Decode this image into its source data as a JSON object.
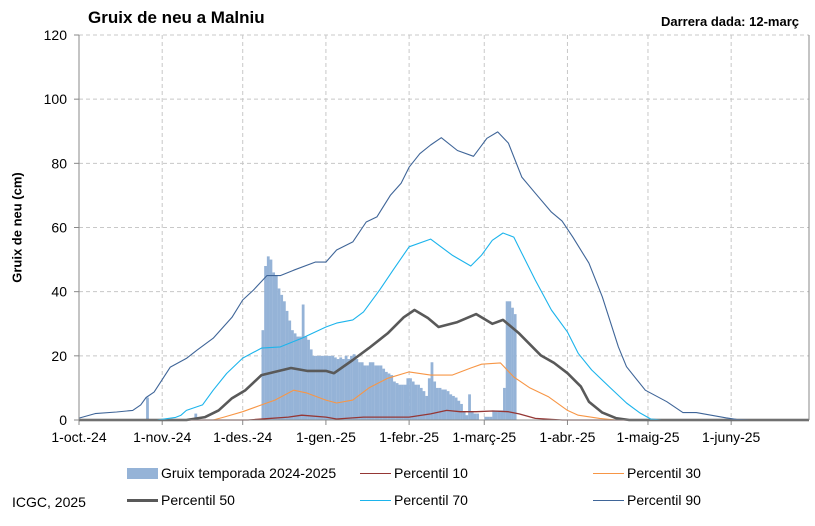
{
  "chart_data": {
    "type": "bar+line",
    "title": "Gruix de neu a Malniu",
    "subtitle": "Darrera dada: 12-març",
    "ylabel": "Gruix de neu (cm)",
    "xlabel": "",
    "credit": "ICGC, 2025",
    "xlim": [
      "2024-10-01",
      "2025-06-30"
    ],
    "ylim": [
      0,
      120
    ],
    "yticks": [
      0,
      20,
      40,
      60,
      80,
      100,
      120
    ],
    "xticks": [
      {
        "date": "2024-10-01",
        "label": "1-oct.-24"
      },
      {
        "date": "2024-11-01",
        "label": "1-nov.-24"
      },
      {
        "date": "2024-12-01",
        "label": "1-des.-24"
      },
      {
        "date": "2025-01-01",
        "label": "1-gen.-25"
      },
      {
        "date": "2025-02-01",
        "label": "1-febr.-25"
      },
      {
        "date": "2025-03-01",
        "label": "1-març-25"
      },
      {
        "date": "2025-04-01",
        "label": "1-abr.-25"
      },
      {
        "date": "2025-05-01",
        "label": "1-maig-25"
      },
      {
        "date": "2025-06-01",
        "label": "1-juny-25"
      }
    ],
    "grid": true,
    "legend_position": "bottom",
    "bars": {
      "name": "Gruix temporada 2024-2025",
      "color": "#95B3D7",
      "points": [
        [
          "2024-10-26",
          7
        ],
        [
          "2024-11-13",
          2
        ],
        [
          "2024-12-08",
          28
        ],
        [
          "2024-12-09",
          48
        ],
        [
          "2024-12-10",
          51
        ],
        [
          "2024-12-11",
          50
        ],
        [
          "2024-12-12",
          46
        ],
        [
          "2024-12-13",
          45
        ],
        [
          "2024-12-14",
          41
        ],
        [
          "2024-12-15",
          39
        ],
        [
          "2024-12-16",
          37
        ],
        [
          "2024-12-17",
          34
        ],
        [
          "2024-12-18",
          31
        ],
        [
          "2024-12-19",
          28
        ],
        [
          "2024-12-20",
          27
        ],
        [
          "2024-12-21",
          26
        ],
        [
          "2024-12-22",
          26
        ],
        [
          "2024-12-23",
          36
        ],
        [
          "2024-12-24",
          26
        ],
        [
          "2024-12-25",
          25
        ],
        [
          "2024-12-26",
          22
        ],
        [
          "2024-12-27",
          20
        ],
        [
          "2024-12-28",
          20
        ],
        [
          "2024-12-29",
          20
        ],
        [
          "2024-12-30",
          20
        ],
        [
          "2024-12-31",
          20
        ],
        [
          "2025-01-01",
          20
        ],
        [
          "2025-01-02",
          20
        ],
        [
          "2025-01-03",
          20
        ],
        [
          "2025-01-04",
          19.5
        ],
        [
          "2025-01-05",
          19
        ],
        [
          "2025-01-06",
          19.5
        ],
        [
          "2025-01-07",
          19
        ],
        [
          "2025-01-08",
          20
        ],
        [
          "2025-01-09",
          19
        ],
        [
          "2025-01-10",
          20
        ],
        [
          "2025-01-11",
          20.5
        ],
        [
          "2025-01-12",
          19
        ],
        [
          "2025-01-13",
          18
        ],
        [
          "2025-01-14",
          18
        ],
        [
          "2025-01-15",
          17
        ],
        [
          "2025-01-16",
          17
        ],
        [
          "2025-01-17",
          18
        ],
        [
          "2025-01-18",
          18
        ],
        [
          "2025-01-19",
          17
        ],
        [
          "2025-01-20",
          17
        ],
        [
          "2025-01-21",
          17
        ],
        [
          "2025-01-22",
          16
        ],
        [
          "2025-01-23",
          15
        ],
        [
          "2025-01-24",
          14.5
        ],
        [
          "2025-01-25",
          14
        ],
        [
          "2025-01-26",
          12
        ],
        [
          "2025-01-27",
          11.5
        ],
        [
          "2025-01-28",
          11
        ],
        [
          "2025-01-29",
          11
        ],
        [
          "2025-01-30",
          11
        ],
        [
          "2025-01-31",
          13
        ],
        [
          "2025-02-01",
          13
        ],
        [
          "2025-02-02",
          12
        ],
        [
          "2025-02-03",
          11
        ],
        [
          "2025-02-04",
          11
        ],
        [
          "2025-02-05",
          10
        ],
        [
          "2025-02-06",
          9
        ],
        [
          "2025-02-07",
          7.5
        ],
        [
          "2025-02-08",
          13
        ],
        [
          "2025-02-09",
          18
        ],
        [
          "2025-02-10",
          12
        ],
        [
          "2025-02-11",
          10
        ],
        [
          "2025-02-12",
          10
        ],
        [
          "2025-02-13",
          9.5
        ],
        [
          "2025-02-14",
          9.5
        ],
        [
          "2025-02-15",
          9
        ],
        [
          "2025-02-16",
          8
        ],
        [
          "2025-02-17",
          7.5
        ],
        [
          "2025-02-18",
          7
        ],
        [
          "2025-02-19",
          6
        ],
        [
          "2025-02-20",
          5
        ],
        [
          "2025-02-21",
          2.5
        ],
        [
          "2025-02-22",
          1.5
        ],
        [
          "2025-02-23",
          8
        ],
        [
          "2025-02-24",
          2.5
        ],
        [
          "2025-02-25",
          2
        ],
        [
          "2025-02-26",
          2
        ],
        [
          "2025-02-27",
          0
        ],
        [
          "2025-02-28",
          0
        ],
        [
          "2025-03-01",
          1
        ],
        [
          "2025-03-02",
          1
        ],
        [
          "2025-03-03",
          1
        ],
        [
          "2025-03-04",
          3
        ],
        [
          "2025-03-05",
          3
        ],
        [
          "2025-03-06",
          3
        ],
        [
          "2025-03-07",
          3
        ],
        [
          "2025-03-08",
          10
        ],
        [
          "2025-03-09",
          37
        ],
        [
          "2025-03-10",
          37
        ],
        [
          "2025-03-11",
          35
        ],
        [
          "2025-03-12",
          33
        ]
      ]
    },
    "series": [
      {
        "name": "Percentil 10",
        "color": "#953735",
        "width": 1.3,
        "points": [
          [
            "2024-10-01",
            0
          ],
          [
            "2024-12-03",
            0
          ],
          [
            "2024-12-18",
            0.9
          ],
          [
            "2024-12-23",
            1.5
          ],
          [
            "2025-01-01",
            0.9
          ],
          [
            "2025-01-05",
            0.3
          ],
          [
            "2025-01-15",
            0.9
          ],
          [
            "2025-02-01",
            0.9
          ],
          [
            "2025-02-09",
            1.9
          ],
          [
            "2025-02-15",
            3
          ],
          [
            "2025-02-20",
            2.6
          ],
          [
            "2025-02-26",
            2.6
          ],
          [
            "2025-03-04",
            2.8
          ],
          [
            "2025-03-10",
            2.6
          ],
          [
            "2025-03-14",
            1.9
          ],
          [
            "2025-03-20",
            0.5
          ],
          [
            "2025-03-26",
            0.2
          ],
          [
            "2025-03-30",
            0
          ],
          [
            "2025-06-30",
            0
          ]
        ]
      },
      {
        "name": "Percentil 30",
        "color": "#F79646",
        "width": 1.1,
        "points": [
          [
            "2024-10-01",
            0
          ],
          [
            "2024-11-20",
            0
          ],
          [
            "2024-11-24",
            0.9
          ],
          [
            "2024-12-01",
            2.6
          ],
          [
            "2024-12-08",
            4.7
          ],
          [
            "2024-12-13",
            6.2
          ],
          [
            "2024-12-20",
            9.3
          ],
          [
            "2024-12-25",
            8.4
          ],
          [
            "2025-01-01",
            6.2
          ],
          [
            "2025-01-05",
            5.3
          ],
          [
            "2025-01-11",
            6.2
          ],
          [
            "2025-01-17",
            10
          ],
          [
            "2025-01-24",
            13
          ],
          [
            "2025-02-01",
            15
          ],
          [
            "2025-02-09",
            14
          ],
          [
            "2025-02-17",
            14
          ],
          [
            "2025-02-24",
            16.2
          ],
          [
            "2025-02-28",
            17.4
          ],
          [
            "2025-03-07",
            17.8
          ],
          [
            "2025-03-12",
            13.4
          ],
          [
            "2025-03-18",
            10
          ],
          [
            "2025-03-25",
            7.2
          ],
          [
            "2025-04-01",
            3
          ],
          [
            "2025-04-05",
            1.5
          ],
          [
            "2025-04-13",
            0.5
          ],
          [
            "2025-04-19",
            0
          ],
          [
            "2025-06-30",
            0
          ]
        ]
      },
      {
        "name": "Percentil 50",
        "color": "#595959",
        "width": 2.6,
        "points": [
          [
            "2024-10-01",
            0
          ],
          [
            "2024-11-10",
            0
          ],
          [
            "2024-11-17",
            0.9
          ],
          [
            "2024-11-22",
            3
          ],
          [
            "2024-11-27",
            6.8
          ],
          [
            "2024-12-02",
            9.3
          ],
          [
            "2024-12-08",
            14
          ],
          [
            "2024-12-13",
            15
          ],
          [
            "2024-12-19",
            16.2
          ],
          [
            "2024-12-25",
            15.3
          ],
          [
            "2025-01-01",
            15.3
          ],
          [
            "2025-01-04",
            14.6
          ],
          [
            "2025-01-11",
            18.7
          ],
          [
            "2025-01-17",
            22.4
          ],
          [
            "2025-01-24",
            27
          ],
          [
            "2025-01-30",
            32
          ],
          [
            "2025-02-03",
            34.3
          ],
          [
            "2025-02-08",
            31.8
          ],
          [
            "2025-02-12",
            29
          ],
          [
            "2025-02-19",
            30.5
          ],
          [
            "2025-02-26",
            33
          ],
          [
            "2025-03-04",
            30
          ],
          [
            "2025-03-08",
            31.2
          ],
          [
            "2025-03-14",
            27
          ],
          [
            "2025-03-22",
            20.2
          ],
          [
            "2025-03-27",
            17.8
          ],
          [
            "2025-04-01",
            14.6
          ],
          [
            "2025-04-06",
            10.4
          ],
          [
            "2025-04-09",
            5.7
          ],
          [
            "2025-04-14",
            2.3
          ],
          [
            "2025-04-19",
            0.6
          ],
          [
            "2025-04-24",
            0
          ],
          [
            "2025-06-30",
            0
          ]
        ]
      },
      {
        "name": "Percentil 70",
        "color": "#1CB4EC",
        "width": 1.1,
        "points": [
          [
            "2024-10-01",
            0
          ],
          [
            "2024-10-30",
            0
          ],
          [
            "2024-11-06",
            0.8
          ],
          [
            "2024-11-08",
            1.5
          ],
          [
            "2024-11-10",
            3
          ],
          [
            "2024-11-16",
            4.7
          ],
          [
            "2024-11-20",
            9.3
          ],
          [
            "2024-11-25",
            14.5
          ],
          [
            "2024-12-01",
            19.3
          ],
          [
            "2024-12-08",
            22.4
          ],
          [
            "2024-12-15",
            22.8
          ],
          [
            "2024-12-23",
            25.5
          ],
          [
            "2025-01-01",
            29
          ],
          [
            "2025-01-05",
            30.2
          ],
          [
            "2025-01-11",
            31.2
          ],
          [
            "2025-01-15",
            33.7
          ],
          [
            "2025-01-21",
            40.5
          ],
          [
            "2025-01-26",
            46.7
          ],
          [
            "2025-02-01",
            54
          ],
          [
            "2025-02-09",
            56.4
          ],
          [
            "2025-02-17",
            51.4
          ],
          [
            "2025-02-24",
            48
          ],
          [
            "2025-02-28",
            51.4
          ],
          [
            "2025-03-04",
            56
          ],
          [
            "2025-03-08",
            58.3
          ],
          [
            "2025-03-12",
            57
          ],
          [
            "2025-03-15",
            52
          ],
          [
            "2025-03-20",
            43.6
          ],
          [
            "2025-03-26",
            34.3
          ],
          [
            "2025-04-01",
            27.4
          ],
          [
            "2025-04-05",
            20.8
          ],
          [
            "2025-04-10",
            15.6
          ],
          [
            "2025-04-17",
            10
          ],
          [
            "2025-04-23",
            5.3
          ],
          [
            "2025-04-28",
            2.2
          ],
          [
            "2025-05-02",
            0.3
          ],
          [
            "2025-05-06",
            0
          ],
          [
            "2025-06-30",
            0
          ]
        ]
      },
      {
        "name": "Percentil 90",
        "color": "#3F6598",
        "width": 1.1,
        "points": [
          [
            "2024-10-01",
            0.6
          ],
          [
            "2024-10-07",
            2
          ],
          [
            "2024-10-15",
            2.5
          ],
          [
            "2024-10-21",
            3
          ],
          [
            "2024-10-24",
            4.7
          ],
          [
            "2024-10-26",
            7
          ],
          [
            "2024-10-29",
            8.7
          ],
          [
            "2024-11-04",
            16.5
          ],
          [
            "2024-11-10",
            19.2
          ],
          [
            "2024-11-14",
            21.8
          ],
          [
            "2024-11-20",
            25.5
          ],
          [
            "2024-11-27",
            32
          ],
          [
            "2024-12-01",
            37.4
          ],
          [
            "2024-12-05",
            40.5
          ],
          [
            "2024-12-10",
            45
          ],
          [
            "2024-12-15",
            45
          ],
          [
            "2024-12-20",
            46.7
          ],
          [
            "2024-12-28",
            49.2
          ],
          [
            "2025-01-01",
            49.2
          ],
          [
            "2025-01-05",
            53
          ],
          [
            "2025-01-11",
            55.5
          ],
          [
            "2025-01-16",
            61.7
          ],
          [
            "2025-01-20",
            63.3
          ],
          [
            "2025-01-25",
            70
          ],
          [
            "2025-01-29",
            73.8
          ],
          [
            "2025-02-01",
            78.8
          ],
          [
            "2025-02-05",
            83
          ],
          [
            "2025-02-09",
            85.7
          ],
          [
            "2025-02-13",
            88
          ],
          [
            "2025-02-19",
            84
          ],
          [
            "2025-02-25",
            82.2
          ],
          [
            "2025-03-02",
            87.8
          ],
          [
            "2025-03-06",
            89.8
          ],
          [
            "2025-03-10",
            86.3
          ],
          [
            "2025-03-15",
            75.7
          ],
          [
            "2025-03-20",
            70.7
          ],
          [
            "2025-03-26",
            64.8
          ],
          [
            "2025-03-30",
            62
          ],
          [
            "2025-04-03",
            57
          ],
          [
            "2025-04-09",
            48.9
          ],
          [
            "2025-04-14",
            38.4
          ],
          [
            "2025-04-20",
            22.8
          ],
          [
            "2025-04-23",
            16.6
          ],
          [
            "2025-04-30",
            9.3
          ],
          [
            "2025-05-08",
            5.7
          ],
          [
            "2025-05-14",
            2.3
          ],
          [
            "2025-05-19",
            2.3
          ],
          [
            "2025-05-30",
            0.7
          ],
          [
            "2025-06-03",
            0.2
          ],
          [
            "2025-06-08",
            0
          ],
          [
            "2025-06-30",
            0
          ]
        ]
      }
    ]
  }
}
